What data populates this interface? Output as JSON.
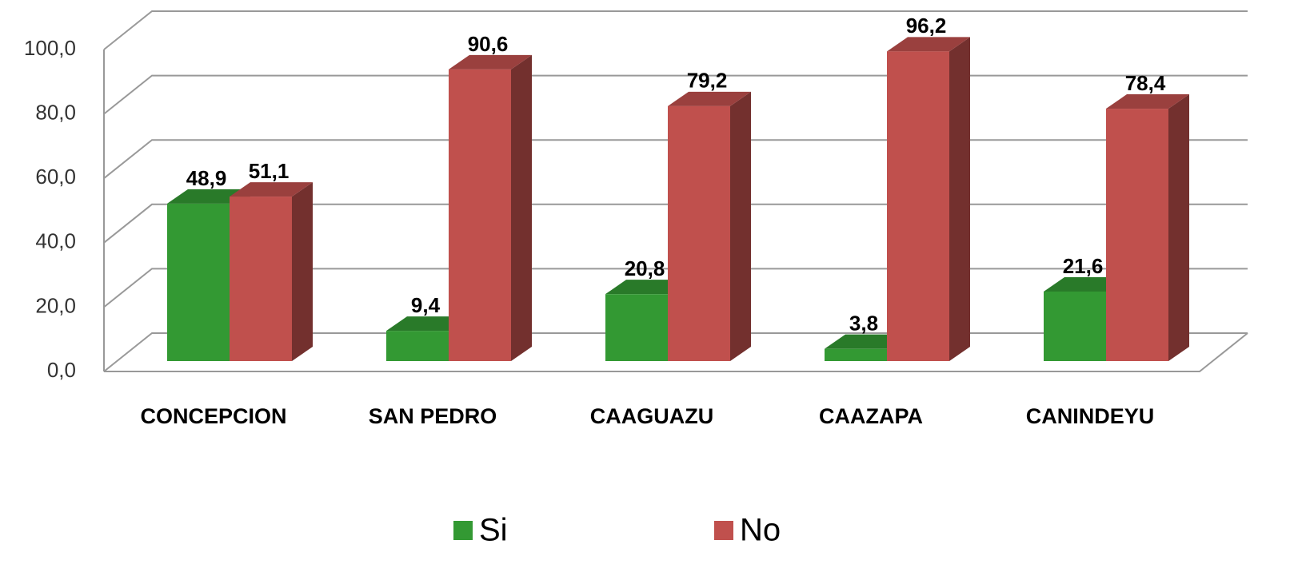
{
  "chart_data": {
    "type": "bar",
    "categories": [
      "CONCEPCION",
      "SAN PEDRO",
      "CAAGUAZU",
      "CAAZAPA",
      "CANINDEYU"
    ],
    "series": [
      {
        "name": "Si",
        "color": "#339933",
        "values": [
          48.9,
          9.4,
          20.8,
          3.8,
          21.6
        ],
        "value_labels": [
          "48,9",
          "9,4",
          "20,8",
          "3,8",
          "21,6"
        ]
      },
      {
        "name": "No",
        "color": "#c0504d",
        "values": [
          51.1,
          90.6,
          79.2,
          96.2,
          78.4
        ],
        "value_labels": [
          "51,1",
          "90,6",
          "79,2",
          "96,2",
          "78,4"
        ]
      }
    ],
    "ylim": [
      0,
      100
    ],
    "yticks": [
      {
        "value": 0,
        "label": "0,0"
      },
      {
        "value": 20,
        "label": "20,0"
      },
      {
        "value": 40,
        "label": "40,0"
      },
      {
        "value": 60,
        "label": "60,0"
      },
      {
        "value": 80,
        "label": "80,0"
      },
      {
        "value": 100,
        "label": "100,0"
      }
    ],
    "grid": true
  }
}
